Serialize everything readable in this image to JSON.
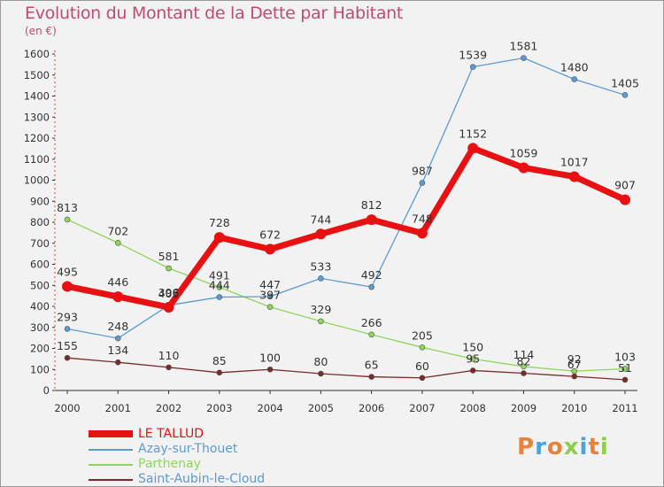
{
  "title": "Evolution du Montant de la Dette par Habitant",
  "unit": "(en €)",
  "logo": "Proxiti",
  "chart_data": {
    "type": "line",
    "title": "Evolution du Montant de la Dette par Habitant",
    "ylabel": "(en €)",
    "x": [
      "2000",
      "2001",
      "2002",
      "2003",
      "2004",
      "2005",
      "2006",
      "2007",
      "2008",
      "2009",
      "2010",
      "2011"
    ],
    "ylim": [
      0,
      1600
    ],
    "yticks": [
      0,
      100,
      200,
      300,
      400,
      500,
      600,
      700,
      800,
      900,
      1000,
      1100,
      1200,
      1300,
      1400,
      1500,
      1600
    ],
    "grid": false,
    "legend_position": "bottom-left",
    "series": [
      {
        "name": "LE TALLUD",
        "color": "#e81010",
        "values": [
          495,
          446,
          396,
          728,
          672,
          744,
          812,
          748,
          1152,
          1059,
          1017,
          907
        ]
      },
      {
        "name": "Azay-sur-Thouet",
        "color": "#5b9bd5",
        "values": [
          293,
          248,
          405,
          444,
          447,
          533,
          492,
          987,
          1539,
          1581,
          1480,
          1405
        ]
      },
      {
        "name": "Parthenay",
        "color": "#8ed65a",
        "values": [
          813,
          702,
          581,
          491,
          397,
          329,
          266,
          205,
          150,
          114,
          92,
          103
        ]
      },
      {
        "name": "Saint-Aubin-le-Cloud",
        "color": "#7a2a2a",
        "values": [
          155,
          134,
          110,
          85,
          100,
          80,
          65,
          60,
          95,
          82,
          67,
          51
        ]
      }
    ]
  }
}
